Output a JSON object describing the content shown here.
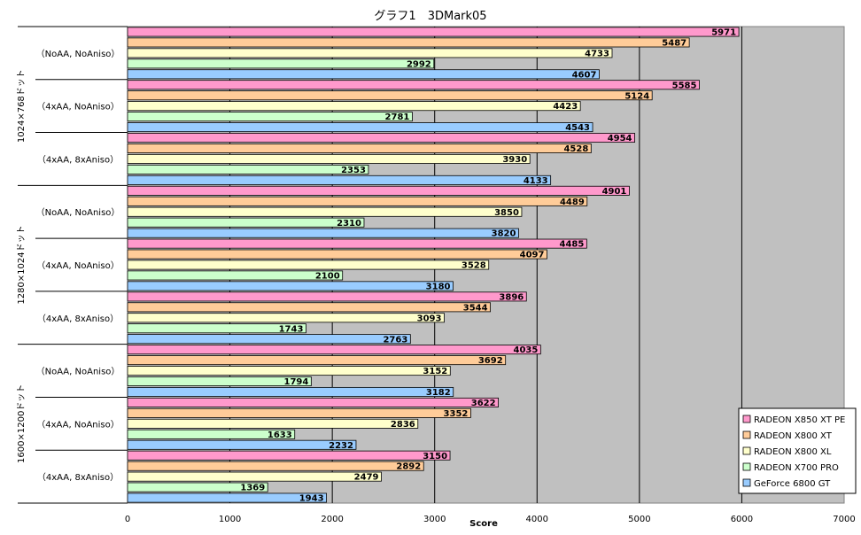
{
  "chart_data": {
    "type": "bar",
    "orientation": "horizontal",
    "title": "グラフ1　3DMark05",
    "xlabel": "Score",
    "xlim": [
      0,
      7000
    ],
    "xticks": [
      0,
      1000,
      2000,
      3000,
      4000,
      5000,
      6000,
      7000
    ],
    "grid": "vertical",
    "legend_position": "bottom-right",
    "groups": [
      "1024×768ドット",
      "1280×1024ドット",
      "1600×1200ドット"
    ],
    "categories": [
      {
        "group": "1024×768ドット",
        "label": "（NoAA, NoAniso）"
      },
      {
        "group": "1024×768ドット",
        "label": "（4xAA, NoAniso）"
      },
      {
        "group": "1024×768ドット",
        "label": "（4xAA, 8xAniso）"
      },
      {
        "group": "1280×1024ドット",
        "label": "（NoAA, NoAniso）"
      },
      {
        "group": "1280×1024ドット",
        "label": "（4xAA, NoAniso）"
      },
      {
        "group": "1280×1024ドット",
        "label": "（4xAA, 8xAniso）"
      },
      {
        "group": "1600×1200ドット",
        "label": "（NoAA, NoAniso）"
      },
      {
        "group": "1600×1200ドット",
        "label": "（4xAA, NoAniso）"
      },
      {
        "group": "1600×1200ドット",
        "label": "（4xAA, 8xAniso）"
      }
    ],
    "series": [
      {
        "name": "RADEON X850 XT PE",
        "color": "#ff99cc",
        "values": [
          5971,
          5585,
          4954,
          4901,
          4485,
          3896,
          4035,
          3622,
          3150
        ]
      },
      {
        "name": "RADEON X800 XT",
        "color": "#ffcc99",
        "values": [
          5487,
          5124,
          4528,
          4489,
          4097,
          3544,
          3692,
          3352,
          2892
        ]
      },
      {
        "name": "RADEON X800 XL",
        "color": "#ffffcc",
        "values": [
          4733,
          4423,
          3930,
          3850,
          3528,
          3093,
          3152,
          2836,
          2479
        ]
      },
      {
        "name": "RADEON X700 PRO",
        "color": "#ccffcc",
        "values": [
          2992,
          2781,
          2353,
          2310,
          2100,
          1743,
          1794,
          1633,
          1369
        ]
      },
      {
        "name": "GeForce 6800 GT",
        "color": "#99ccff",
        "values": [
          4607,
          4543,
          4133,
          3820,
          3180,
          2763,
          3182,
          2232,
          1943
        ]
      }
    ],
    "colors": {
      "plot_background": "#c0c0c0",
      "grid": "#000000"
    }
  }
}
